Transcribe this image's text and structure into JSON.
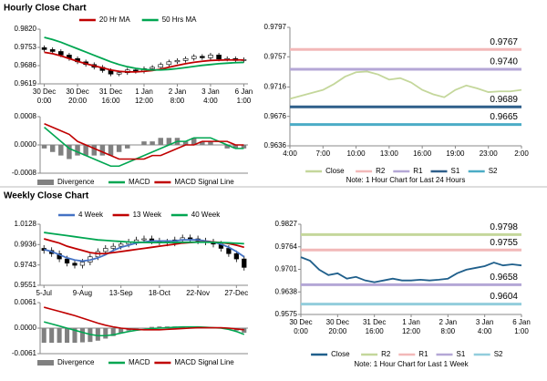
{
  "chart_data": [
    {
      "type": "candlestick",
      "title": "Hourly Close Chart",
      "categories": [
        "30 Dec\n0:00",
        null,
        null,
        null,
        "30 Dec\n20:00",
        null,
        null,
        null,
        "31 Dec\n16:00",
        null,
        null,
        null,
        "1 Jan\n12:00",
        null,
        null,
        null,
        "2 Jan\n8:00",
        null,
        null,
        null,
        "3 Jan\n4:00",
        null,
        null,
        null,
        "6 Jan\n1:00"
      ],
      "open": [
        0.9752,
        0.9745,
        0.9738,
        0.9725,
        0.9712,
        0.97,
        0.969,
        0.968,
        0.9668,
        0.9655,
        0.966,
        0.967,
        0.9665,
        0.9675,
        0.968,
        0.969,
        0.97,
        0.9705,
        0.9712,
        0.972,
        0.9715,
        0.9725,
        0.971,
        0.9712,
        0.9705
      ],
      "high": [
        0.976,
        0.9753,
        0.9746,
        0.9733,
        0.972,
        0.9708,
        0.9698,
        0.9688,
        0.9676,
        0.9668,
        0.9678,
        0.9678,
        0.9683,
        0.9688,
        0.9698,
        0.9708,
        0.9713,
        0.972,
        0.9728,
        0.9728,
        0.9733,
        0.9733,
        0.972,
        0.972,
        0.9716
      ],
      "low": [
        0.9737,
        0.973,
        0.9717,
        0.9704,
        0.9692,
        0.9682,
        0.9672,
        0.966,
        0.9647,
        0.9647,
        0.9652,
        0.9657,
        0.9657,
        0.9667,
        0.9672,
        0.9682,
        0.9692,
        0.9697,
        0.9704,
        0.9707,
        0.9707,
        0.9702,
        0.9702,
        0.9697,
        0.9697
      ],
      "close": [
        0.9745,
        0.9738,
        0.9725,
        0.9712,
        0.97,
        0.969,
        0.968,
        0.9668,
        0.9655,
        0.966,
        0.967,
        0.9665,
        0.9675,
        0.968,
        0.969,
        0.97,
        0.9705,
        0.9712,
        0.972,
        0.9715,
        0.9725,
        0.971,
        0.9712,
        0.9705,
        0.9708
      ],
      "series": [
        {
          "name": "20 Hr MA",
          "color": "#c00000",
          "values": [
            0.9735,
            0.973,
            0.9722,
            0.9712,
            0.9702,
            0.9693,
            0.9685,
            0.9678,
            0.967,
            0.9665,
            0.9663,
            0.9663,
            0.9665,
            0.9668,
            0.9673,
            0.968,
            0.9687,
            0.9693,
            0.9698,
            0.9702,
            0.9705,
            0.9706,
            0.9707,
            0.9707,
            0.9707
          ]
        },
        {
          "name": "50 Hrs MA",
          "color": "#00a651",
          "values": [
            0.979,
            0.9782,
            0.9772,
            0.976,
            0.9748,
            0.9736,
            0.9724,
            0.9712,
            0.97,
            0.969,
            0.9682,
            0.9676,
            0.9672,
            0.967,
            0.967,
            0.9672,
            0.9675,
            0.9679,
            0.9683,
            0.9687,
            0.969,
            0.9693,
            0.9695,
            0.9697,
            0.9698
          ]
        }
      ],
      "ylim": [
        0.9619,
        0.982
      ],
      "yticks": [
        0.9619,
        0.9686,
        0.9753,
        {
          "value": 0.982,
          "label": "0.9820"
        }
      ]
    },
    {
      "type": "macd",
      "series": [
        {
          "name": "Divergence",
          "color": "#808080",
          "values": [
            -0.0001,
            -0.0002,
            -0.0003,
            -0.0004,
            -0.0003,
            -0.0003,
            -0.0003,
            -0.0003,
            -0.0003,
            -0.0002,
            -0.0001,
            0,
            0.0001,
            0.0001,
            0.0002,
            0.0002,
            0.0002,
            0.0001,
            0.0002,
            0.0001,
            0.0001,
            0,
            -0.0001,
            -0.0001,
            -0.0001
          ]
        },
        {
          "name": "MACD",
          "color": "#00a651",
          "values": [
            0.0005,
            0.0003,
            0.0001,
            -0.0001,
            -0.0002,
            -0.0003,
            -0.0004,
            -0.0005,
            -0.0006,
            -0.0006,
            -0.0005,
            -0.0004,
            -0.0003,
            -0.0002,
            -0.0001,
            0,
            0.0001,
            0.0001,
            0.0002,
            0.0002,
            0.0002,
            0.0001,
            0,
            -0.0001,
            -0.0001
          ]
        },
        {
          "name": "MACD Signal Line",
          "color": "#c00000",
          "values": [
            0.0006,
            0.0005,
            0.0004,
            0.0003,
            0.0001,
            0,
            -0.0001,
            -0.0002,
            -0.0003,
            -0.0004,
            -0.0004,
            -0.0004,
            -0.0004,
            -0.0003,
            -0.0003,
            -0.0002,
            -0.0001,
            0,
            0,
            0.0001,
            0.0001,
            0.0001,
            0.0001,
            0,
            0
          ]
        }
      ],
      "ylim": [
        -0.0008,
        0.0008
      ],
      "yticks": [
        -0.0008,
        {
          "value": 0,
          "label": "0.0000"
        },
        0.0008
      ]
    },
    {
      "type": "line",
      "note": "Note: 1 Hour Chart for Last 24 Hours",
      "categories": [
        "4:00",
        null,
        null,
        "7:00",
        null,
        null,
        "10:00",
        null,
        null,
        "13:00",
        null,
        null,
        "16:00",
        null,
        null,
        "19:00",
        null,
        null,
        "23:00",
        null,
        null,
        "2:00"
      ],
      "series": [
        {
          "name": "Close",
          "color": "#c4d79b",
          "values": [
            0.97,
            0.9704,
            0.9708,
            0.9712,
            0.972,
            0.973,
            0.9736,
            0.9737,
            0.9733,
            0.9726,
            0.9728,
            0.9722,
            0.9712,
            0.9706,
            0.9702,
            0.9712,
            0.9718,
            0.9714,
            0.9709,
            0.971,
            0.971,
            0.9712
          ]
        }
      ],
      "levels": [
        {
          "name": "R2",
          "color": "#f2b8b8",
          "value": 0.9767
        },
        {
          "name": "R1",
          "color": "#b4a7d6",
          "value": 0.974
        },
        {
          "name": "S1",
          "color": "#2e5f8a",
          "value": 0.9689
        },
        {
          "name": "S2",
          "color": "#4bacc6",
          "value": 0.9665
        }
      ],
      "value_labels": [
        "0.9767",
        "0.9740",
        "0.9689",
        "0.9665"
      ],
      "ylim": [
        0.9636,
        0.9797
      ],
      "yticks": [
        0.9636,
        0.9676,
        0.9716,
        0.9757,
        0.9797
      ]
    },
    {
      "type": "candlestick",
      "title": "Weekly Close Chart",
      "categories": [
        "5-Jul",
        null,
        null,
        null,
        null,
        "9-Aug",
        null,
        null,
        null,
        null,
        "13-Sep",
        null,
        null,
        null,
        null,
        "18-Oct",
        null,
        null,
        null,
        null,
        "22-Nov",
        null,
        null,
        null,
        null,
        "27-Dec",
        null
      ],
      "open": [
        0.99,
        0.988,
        0.985,
        0.98,
        0.976,
        0.974,
        0.977,
        0.982,
        0.987,
        0.99,
        0.992,
        0.994,
        0.996,
        0.998,
        0.999,
        0.997,
        0.996,
        0.995,
        0.998,
        1.0,
        0.999,
        0.997,
        0.996,
        0.994,
        0.99,
        0.985,
        0.98
      ],
      "high": [
        0.993,
        0.991,
        0.988,
        0.983,
        0.979,
        0.98,
        0.985,
        0.99,
        0.993,
        0.995,
        0.997,
        0.999,
        1.001,
        1.002,
        1.002,
        1.0,
        0.999,
        1.001,
        1.003,
        1.003,
        1.002,
        1.0,
        0.999,
        0.997,
        0.993,
        0.988,
        0.983
      ],
      "low": [
        0.985,
        0.982,
        0.977,
        0.973,
        0.971,
        0.971,
        0.974,
        0.979,
        0.984,
        0.987,
        0.989,
        0.991,
        0.993,
        0.995,
        0.994,
        0.993,
        0.992,
        0.992,
        0.995,
        0.996,
        0.994,
        0.993,
        0.991,
        0.987,
        0.982,
        0.977,
        0.969
      ],
      "close": [
        0.988,
        0.985,
        0.98,
        0.976,
        0.974,
        0.977,
        0.982,
        0.987,
        0.99,
        0.992,
        0.994,
        0.996,
        0.998,
        0.999,
        0.997,
        0.996,
        0.995,
        0.998,
        1.0,
        0.999,
        0.997,
        0.996,
        0.994,
        0.99,
        0.985,
        0.98,
        0.972
      ],
      "series": [
        {
          "name": "4 Week",
          "color": "#4472c4",
          "values": [
            0.989,
            0.987,
            0.984,
            0.981,
            0.979,
            0.978,
            0.979,
            0.981,
            0.984,
            0.988,
            0.991,
            0.993,
            0.995,
            0.996,
            0.997,
            0.997,
            0.997,
            0.997,
            0.998,
            0.998,
            0.998,
            0.997,
            0.996,
            0.994,
            0.991,
            0.987,
            0.982
          ]
        },
        {
          "name": "13 Week",
          "color": "#c00000",
          "values": [
            0.999,
            0.997,
            0.995,
            0.992,
            0.99,
            0.988,
            0.986,
            0.985,
            0.985,
            0.986,
            0.987,
            0.988,
            0.989,
            0.99,
            0.991,
            0.992,
            0.993,
            0.994,
            0.995,
            0.9955,
            0.996,
            0.996,
            0.996,
            0.9955,
            0.9945,
            0.993,
            0.991
          ]
        },
        {
          "name": "40 Week",
          "color": "#00a651",
          "values": [
            1.005,
            1.004,
            1.003,
            1.002,
            1.001,
            1.0,
            0.999,
            0.998,
            0.9975,
            0.997,
            0.9965,
            0.996,
            0.9958,
            0.9956,
            0.9955,
            0.9955,
            0.9955,
            0.9956,
            0.9957,
            0.9958,
            0.9958,
            0.9958,
            0.9957,
            0.9955,
            0.9952,
            0.9948,
            0.9944
          ]
        }
      ],
      "ylim": [
        0.9551,
        1.0128
      ],
      "yticks": [
        0.9551,
        0.9743,
        0.9936,
        1.0128
      ]
    },
    {
      "type": "macd",
      "series": [
        {
          "name": "Divergence",
          "color": "#808080",
          "values": [
            -0.0035,
            -0.0035,
            -0.0035,
            -0.0035,
            -0.0035,
            -0.0034,
            -0.0033,
            -0.003,
            -0.0025,
            -0.0019,
            -0.0012,
            -0.0006,
            -0.0002,
            0.0001,
            0.0003,
            0.0004,
            0.0004,
            0.0004,
            0.0004,
            0.0003,
            0.0002,
            0.0001,
            0,
            -0.0001,
            -0.0003,
            -0.0006,
            -0.0011
          ]
        },
        {
          "name": "MACD",
          "color": "#00a651",
          "values": [
            0.0015,
            0.001,
            0.0005,
            0,
            -0.0005,
            -0.001,
            -0.0015,
            -0.0018,
            -0.0018,
            -0.0016,
            -0.0012,
            -0.0008,
            -0.0005,
            -0.0003,
            -0.0001,
            0,
            0.0001,
            0.0002,
            0.0003,
            0.0003,
            0.0003,
            0.0002,
            0.0001,
            0,
            -0.0003,
            -0.0008,
            -0.0015
          ]
        },
        {
          "name": "MACD Signal Line",
          "color": "#c00000",
          "values": [
            0.005,
            0.0045,
            0.004,
            0.0035,
            0.003,
            0.0024,
            0.0018,
            0.0012,
            0.0007,
            0.0003,
            0,
            -0.0002,
            -0.0003,
            -0.0004,
            -0.0004,
            -0.0004,
            -0.0003,
            -0.0002,
            -0.0001,
            0,
            0.0001,
            0.0001,
            0.0001,
            0.0001,
            0,
            -0.0002,
            -0.0004
          ]
        }
      ],
      "ylim": [
        -0.0061,
        0.0061
      ],
      "yticks": [
        -0.0061,
        {
          "value": 0,
          "label": "0.0000"
        },
        0.0061
      ]
    },
    {
      "type": "line",
      "note": "Note: 1 Hour Chart for Last 1 Week",
      "categories": [
        "30 Dec\n0:00",
        null,
        null,
        null,
        "30 Dec\n20:00",
        null,
        null,
        null,
        "31 Dec\n16:00",
        null,
        null,
        null,
        "1 Jan\n12:00",
        null,
        null,
        null,
        "2 Jan\n8:00",
        null,
        null,
        null,
        "3 Jan\n4:00",
        null,
        null,
        null,
        "6 Jan\n1:00"
      ],
      "series": [
        {
          "name": "Close",
          "color": "#1f5f8b",
          "values": [
            0.9735,
            0.9725,
            0.97,
            0.9685,
            0.969,
            0.9675,
            0.968,
            0.967,
            0.9665,
            0.967,
            0.9675,
            0.967,
            0.967,
            0.9672,
            0.967,
            0.9672,
            0.9675,
            0.969,
            0.97,
            0.9705,
            0.971,
            0.972,
            0.9712,
            0.9715,
            0.9712
          ]
        }
      ],
      "levels": [
        {
          "name": "R2",
          "color": "#c4d79b",
          "value": 0.9798
        },
        {
          "name": "R1",
          "color": "#f2b8b8",
          "value": 0.9755
        },
        {
          "name": "S1",
          "color": "#b4a7d6",
          "value": 0.9658
        },
        {
          "name": "S2",
          "color": "#92cddc",
          "value": 0.9604
        }
      ],
      "value_labels": [
        "0.9798",
        "0.9755",
        "0.9658",
        "0.9604"
      ],
      "ylim": [
        0.9575,
        0.9827
      ],
      "yticks": [
        0.9575,
        0.9638,
        0.9701,
        0.9764,
        0.9827
      ]
    }
  ]
}
